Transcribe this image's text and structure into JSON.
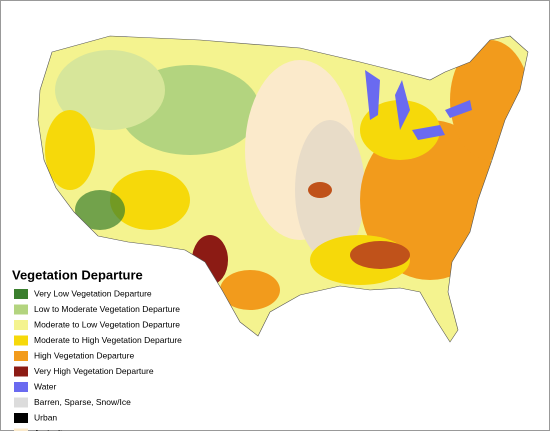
{
  "legend": {
    "title": "Vegetation Departure",
    "items": [
      {
        "label": "Very Low Vegetation Departure",
        "color": "#3b7f2e"
      },
      {
        "label": "Low to Moderate Vegetation Departure",
        "color": "#b3d47f"
      },
      {
        "label": "Moderate to Low Vegetation Departure",
        "color": "#f4f38f"
      },
      {
        "label": "Moderate to High Vegetation Departure",
        "color": "#f6d90a"
      },
      {
        "label": "High Vegetation Departure",
        "color": "#f29b1c"
      },
      {
        "label": "Very High Vegetation Departure",
        "color": "#8c1b14"
      },
      {
        "label": "Water",
        "color": "#6a6af0"
      },
      {
        "label": "Barren, Sparse, Snow/Ice",
        "color": "#dcdcdc"
      },
      {
        "label": "Urban",
        "color": "#000000"
      },
      {
        "label": "Agriculture",
        "color": "#fbeacb"
      }
    ]
  }
}
